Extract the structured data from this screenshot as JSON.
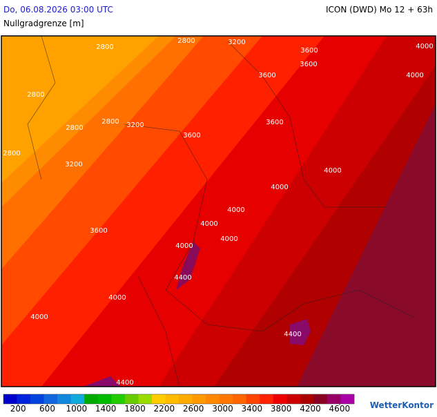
{
  "header": {
    "valid_time": "Do, 06.08.2026 03:00 UTC",
    "model_run": "ICON (DWD) Mo 12 + 63h",
    "parameter": "Nullgradgrenze [m]"
  },
  "map": {
    "contour_labels": [
      2800,
      2800,
      3200,
      3600,
      4000,
      3600,
      3600,
      4000,
      2800,
      2800,
      2800,
      3200,
      3600,
      3600,
      2800,
      3200,
      4000,
      4000,
      4000,
      4000,
      3600,
      4000,
      4000,
      4400,
      4000,
      4000,
      4400,
      4400
    ]
  },
  "colorbar": {
    "range": [
      0,
      4800
    ],
    "ticks": [
      200,
      600,
      1000,
      1400,
      1800,
      2200,
      2600,
      3000,
      3400,
      3800,
      4200,
      4600
    ],
    "colors": [
      "#0000cc",
      "#0022dd",
      "#0044dd",
      "#1166dd",
      "#1188dd",
      "#11aadd",
      "#00aa00",
      "#00bb00",
      "#22cc00",
      "#66cc00",
      "#99dd00",
      "#ffcc00",
      "#ffbb00",
      "#ffaa00",
      "#ff9900",
      "#ff8800",
      "#ff7700",
      "#ff6600",
      "#ff4400",
      "#ff2200",
      "#ee0000",
      "#cc0000",
      "#aa0000",
      "#880022",
      "#990066",
      "#aa00aa"
    ]
  },
  "logo": "WetterKontor"
}
